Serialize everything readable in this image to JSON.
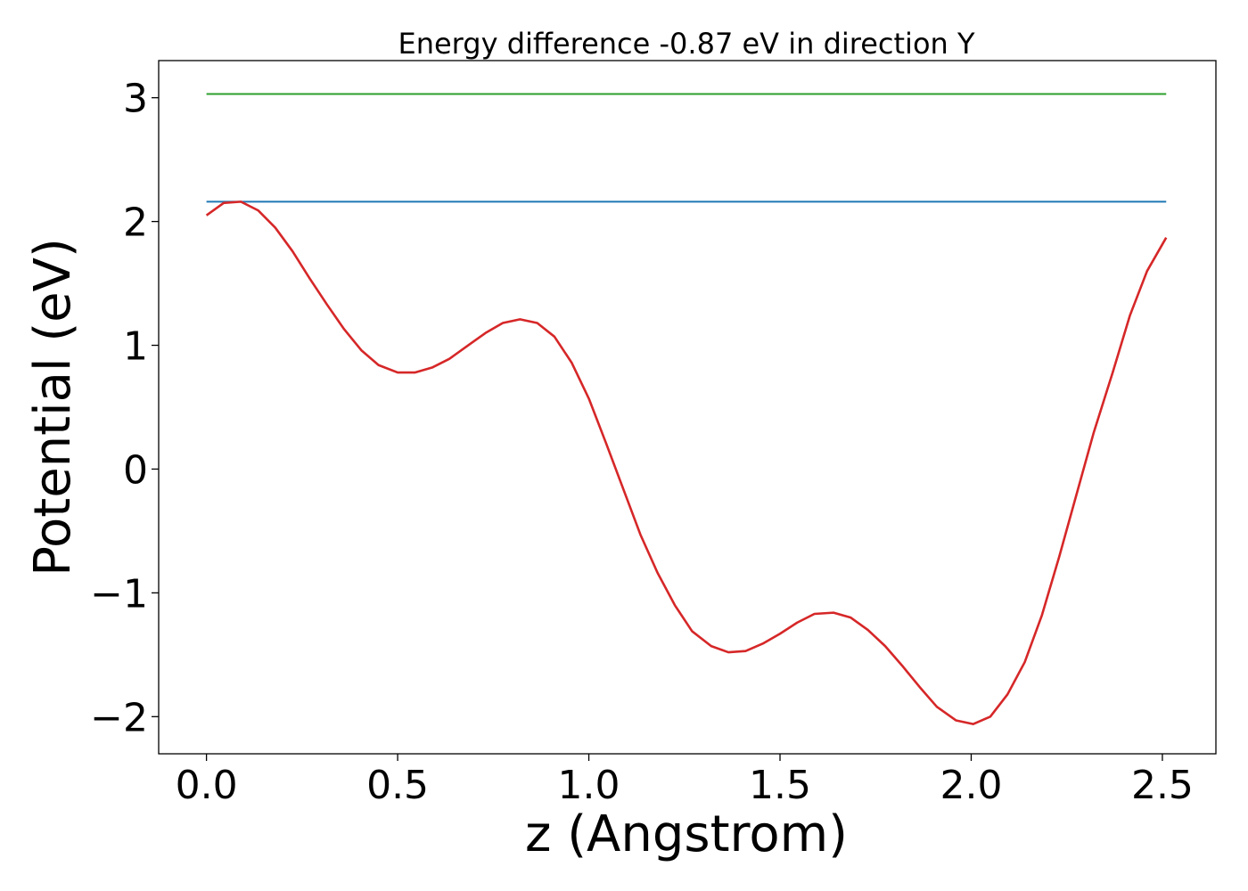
{
  "chart_data": {
    "type": "line",
    "title": "Energy difference -0.87 eV in direction Y",
    "xlabel": "z (Angstrom)",
    "ylabel": "Potential (eV)",
    "xlim": [
      -0.125,
      2.64
    ],
    "ylim": [
      -2.3,
      3.3
    ],
    "grid": false,
    "xticks": [
      0.0,
      0.5,
      1.0,
      1.5,
      2.0,
      2.5
    ],
    "xtick_labels": [
      "0.0",
      "0.5",
      "1.0",
      "1.5",
      "2.0",
      "2.5"
    ],
    "yticks": [
      -2,
      -1,
      0,
      1,
      2,
      3
    ],
    "ytick_labels": [
      "−2",
      "−1",
      "0",
      "1",
      "2",
      "3"
    ],
    "series": [
      {
        "color": "#2ca02c",
        "x": [
          0.0,
          2.51
        ],
        "y": [
          3.03,
          3.03
        ]
      },
      {
        "color": "#1f77b4",
        "x": [
          0.0,
          2.51
        ],
        "y": [
          2.16,
          2.16
        ]
      },
      {
        "color": "#d62728",
        "x": [
          0.0,
          0.045,
          0.09,
          0.135,
          0.18,
          0.225,
          0.27,
          0.315,
          0.36,
          0.405,
          0.45,
          0.5,
          0.545,
          0.59,
          0.635,
          0.68,
          0.73,
          0.775,
          0.82,
          0.865,
          0.91,
          0.955,
          1.0,
          1.045,
          1.09,
          1.135,
          1.18,
          1.225,
          1.27,
          1.32,
          1.365,
          1.41,
          1.455,
          1.5,
          1.545,
          1.59,
          1.64,
          1.685,
          1.73,
          1.775,
          1.82,
          1.865,
          1.91,
          1.96,
          2.005,
          2.05,
          2.095,
          2.14,
          2.185,
          2.23,
          2.275,
          2.32,
          2.37,
          2.415,
          2.46,
          2.51
        ],
        "y": [
          2.05,
          2.15,
          2.16,
          2.09,
          1.95,
          1.76,
          1.54,
          1.33,
          1.13,
          0.96,
          0.84,
          0.78,
          0.78,
          0.82,
          0.89,
          0.99,
          1.1,
          1.18,
          1.21,
          1.18,
          1.07,
          0.86,
          0.57,
          0.21,
          -0.16,
          -0.53,
          -0.84,
          -1.1,
          -1.31,
          -1.43,
          -1.48,
          -1.47,
          -1.41,
          -1.33,
          -1.24,
          -1.17,
          -1.16,
          -1.2,
          -1.3,
          -1.43,
          -1.59,
          -1.76,
          -1.92,
          -2.03,
          -2.06,
          -2.0,
          -1.82,
          -1.56,
          -1.18,
          -0.71,
          -0.21,
          0.29,
          0.78,
          1.24,
          1.6,
          1.87
        ]
      }
    ]
  }
}
